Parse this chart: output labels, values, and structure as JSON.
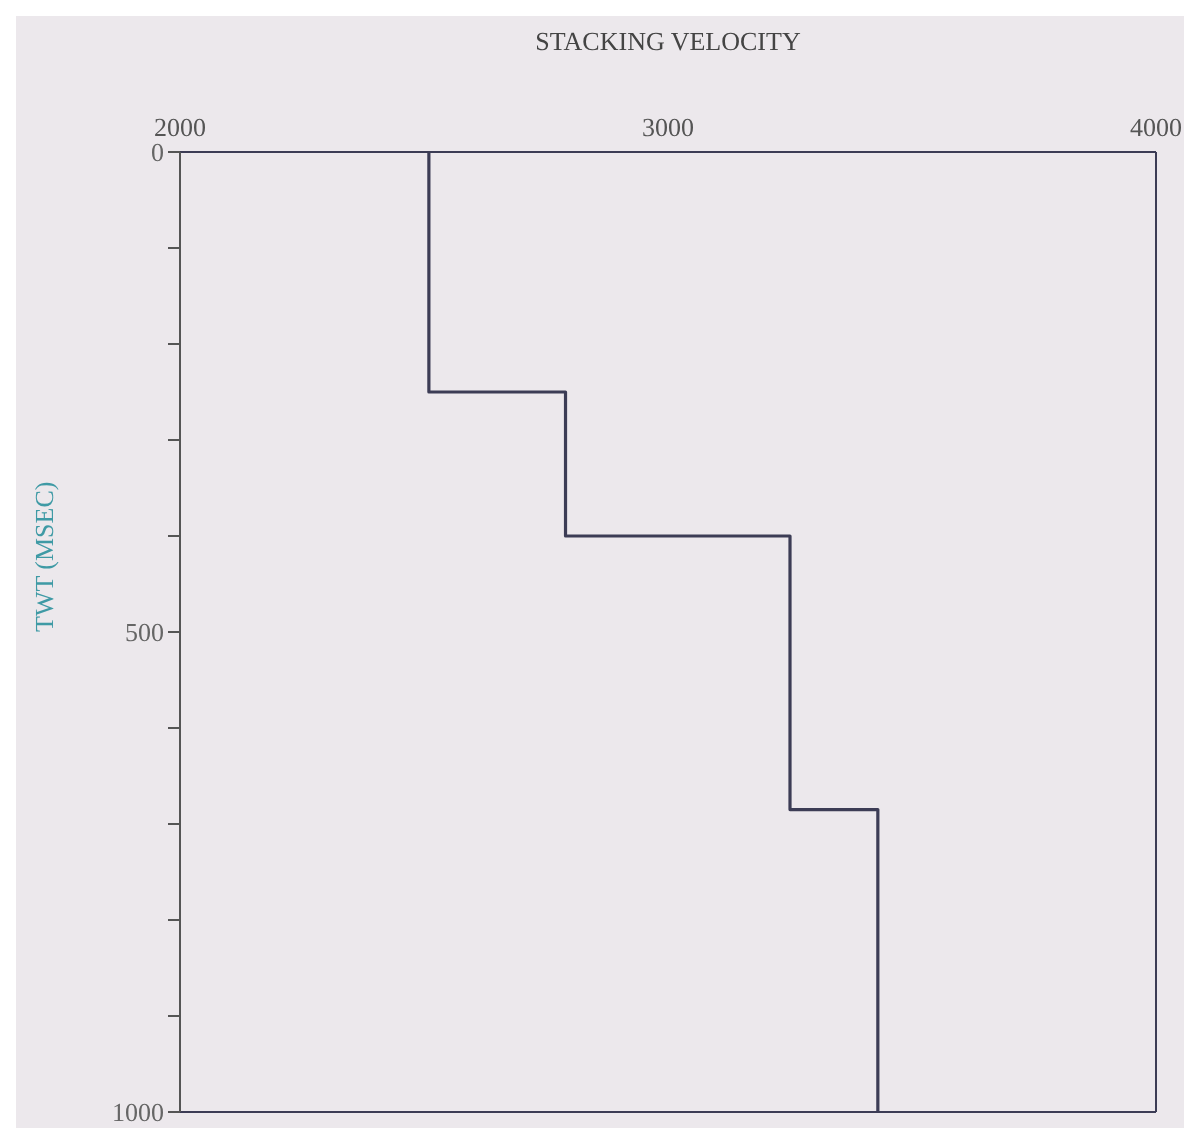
{
  "chart_data": {
    "type": "line",
    "xlabel": "STACKING VELOCITY",
    "ylabel": "TWT (MSEC)",
    "xlim": [
      2000,
      4000
    ],
    "xticks": [
      2000,
      3000,
      4000
    ],
    "ylim": [
      1000,
      0
    ],
    "yticks": [
      0,
      {
        "value": 100,
        "label": null
      },
      {
        "value": 200,
        "label": null
      },
      {
        "value": 300,
        "label": null
      },
      {
        "value": 400,
        "label": null
      },
      500,
      {
        "value": 600,
        "label": null
      },
      {
        "value": 700,
        "label": null
      },
      {
        "value": 800,
        "label": null
      },
      {
        "value": 900,
        "label": null
      },
      1000
    ],
    "series": [
      {
        "color": "#3c3c55",
        "x": [
          2510,
          2510,
          2790,
          2790,
          3250,
          3250,
          3430,
          3430
        ],
        "values": [
          0,
          250,
          250,
          400,
          400,
          685,
          685,
          1000
        ]
      }
    ],
    "marker": "none",
    "line_style": "solid"
  }
}
